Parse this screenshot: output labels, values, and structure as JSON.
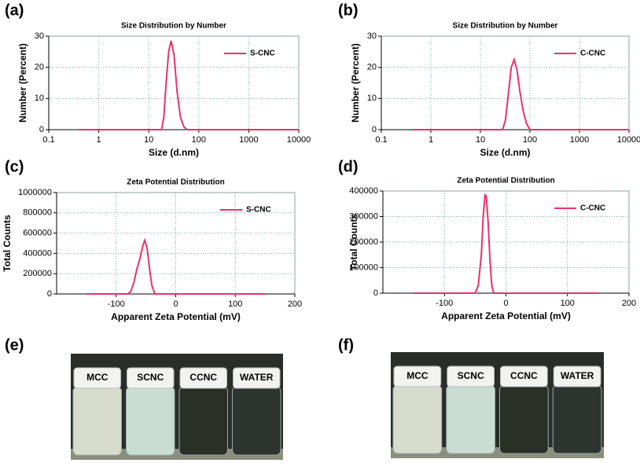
{
  "chart_data": [
    {
      "type": "line",
      "panel": "(a)",
      "title": "Size Distribution  by Number",
      "x_label": "Size (d.nm)",
      "y_label": "Number (Percent)",
      "xscale": "log",
      "xlim": [
        0.1,
        10000
      ],
      "xticks": [
        0.1,
        1,
        10,
        100,
        1000,
        10000
      ],
      "ylim": [
        0,
        30
      ],
      "yticks": [
        0,
        10,
        20,
        30
      ],
      "grid": true,
      "x": [
        0.4,
        18,
        20,
        22,
        25,
        28,
        32,
        37,
        43,
        50,
        58,
        10000
      ],
      "series": [
        {
          "name": "S-CNC",
          "color": "#e8336b",
          "values": [
            0,
            0,
            4,
            14,
            25,
            28.5,
            24,
            12,
            4,
            1,
            0,
            0
          ]
        }
      ]
    },
    {
      "type": "line",
      "panel": "(b)",
      "title": "Size Distribution  by Number",
      "x_label": "Size (d.nm)",
      "y_label": "Number (Percent)",
      "xscale": "log",
      "xlim": [
        0.1,
        10000
      ],
      "xticks": [
        0.1,
        1,
        10,
        100,
        1000,
        10000
      ],
      "ylim": [
        0,
        30
      ],
      "yticks": [
        0,
        10,
        20,
        30
      ],
      "grid": true,
      "x": [
        0.4,
        28,
        32,
        37,
        42,
        48,
        55,
        63,
        73,
        85,
        100,
        10000
      ],
      "series": [
        {
          "name": "C-CNC",
          "color": "#e8336b",
          "values": [
            0,
            0,
            3,
            12,
            20,
            22.5,
            19,
            12,
            6,
            2,
            0,
            0
          ]
        }
      ]
    },
    {
      "type": "line",
      "panel": "(c)",
      "title": "Zeta Potential Distribution",
      "x_label": "Apparent Zeta Potential (mV)",
      "y_label": "Total Counts",
      "xscale": "linear",
      "xlim": [
        -200,
        200
      ],
      "xticks": [
        -100,
        0,
        100,
        200
      ],
      "ylim": [
        0,
        1000000
      ],
      "yticks": [
        0,
        200000,
        400000,
        600000,
        800000,
        1000000
      ],
      "grid": true,
      "x": [
        -150,
        -80,
        -75,
        -70,
        -65,
        -60,
        -55,
        -52,
        -48,
        -44,
        -40,
        -35,
        150
      ],
      "series": [
        {
          "name": "S-CNC",
          "color": "#e8336b",
          "values": [
            0,
            0,
            30000,
            120000,
            250000,
            350000,
            480000,
            530000,
            450000,
            250000,
            80000,
            0,
            0
          ]
        }
      ]
    },
    {
      "type": "line",
      "panel": "(d)",
      "title": "Zeta Potential Distribution",
      "x_label": "Apparent Zeta Potential (mV)",
      "y_label": "Total Counts",
      "xscale": "linear",
      "xlim": [
        -200,
        200
      ],
      "xticks": [
        -100,
        0,
        100,
        200
      ],
      "ylim": [
        0,
        400000
      ],
      "yticks": [
        0,
        100000,
        200000,
        300000,
        400000
      ],
      "grid": true,
      "x": [
        -150,
        -50,
        -45,
        -40,
        -37,
        -34,
        -32,
        -29,
        -26,
        -23,
        -20,
        150
      ],
      "series": [
        {
          "name": "C-CNC",
          "color": "#e8336b",
          "values": [
            0,
            0,
            30000,
            150000,
            300000,
            385000,
            380000,
            280000,
            130000,
            30000,
            0,
            0
          ]
        }
      ]
    }
  ],
  "photos": [
    {
      "panel": "(e)",
      "vials": [
        "MCC",
        "SCNC",
        "CCNC",
        "WATER"
      ]
    },
    {
      "panel": "(f)",
      "vials": [
        "MCC",
        "SCNC",
        "CCNC",
        "WATER"
      ]
    }
  ]
}
